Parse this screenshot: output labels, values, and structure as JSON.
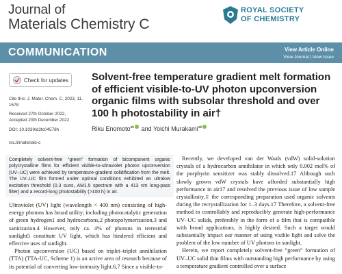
{
  "header": {
    "journal_line1": "Journal of",
    "journal_line2": "Materials Chemistry C",
    "publisher_line1": "ROYAL SOCIETY",
    "publisher_line2": "OF CHEMISTRY"
  },
  "banner": {
    "section": "COMMUNICATION",
    "view_online": "View Article Online",
    "view_links": "View Journal | View Issue"
  },
  "check_updates": "Check for updates",
  "article": {
    "title": "Solvent-free temperature gradient melt formation of efficient visible-to-UV photon upconversion organic films with subsolar threshold and over 100 h photostability in air†",
    "authors": [
      {
        "name": "Riku Enomoto",
        "affil": "ab"
      },
      {
        "name": "Yoichi Murakami",
        "affil": "ab"
      }
    ],
    "author_join": "and",
    "cite": "Cite this: J. Mater. Chem. C, 2023, 11, 1678",
    "received": "Received 27th October 2022,",
    "accepted": "Accepted 20th December 2022",
    "doi": "DOI: 10.1039/d2tc04578h",
    "url": "rsc.li/materials-c",
    "abstract": "Completely solvent-free “green” formation of bicomponent organic polycrystalline films for efficient visible-to-ultraviolet photon upconversion (UV–UC) were achieved by temperature-gradient solidification from the melt. The UV–UC film formed under optimal conditions exhibited an ultralow excitation threshold (0.3 suns, AM1.5 spectrum with a 413 nm long-pass filter) and a record-long photostability (>100 h) in air.",
    "body_left": [
      "Ultraviolet (UV) light (wavelength < 400 nm) consisting of high-energy photons has broad utility; including photocatalytic generation of green hydrogen1 and hydrocarbons,2 photopolymerization,3 and sanitization.4 However, only ca. 4% of photons in terrestrial sunlight5 constitute UV light, which has hindered efficient and effective uses of sunlight.",
      "Photon upconversion (UC) based on triplet–triplet annihilation (TTA) (TTA-UC, Scheme 1) is an active area of research because of its potential of converting low-intensity light.6,7 Since a visible-to-"
    ],
    "body_right": [
      "Recently, we developed van der Waals (vdW) solid-solution crystals of a hydrocarbon annihilator in which only 0.002 mol% of the porphyrin sensitizer was stably dissolved.17 Although such slowly grown vdW crystals have afforded substantially high performance in air17 and resolved the previous issue of low sample crystallinity,‡ the corresponding preparation used organic solvents during the recrystallization for 1–3 days.17 Therefore, a solvent-free method to controllably and reproducibly generate high-performance UV–UC solids, preferably in the form of a film that is compatible with broad applications, is highly desired. Such a target would substantially impact our manner of using visible light and solve the problem of the low number of UV photons in sunlight.",
      "Herein, we report completely solvent-free “green” formation of UV–UC solid thin films with outstanding high performance by using a temperature gradient controlled over a surface"
    ]
  }
}
